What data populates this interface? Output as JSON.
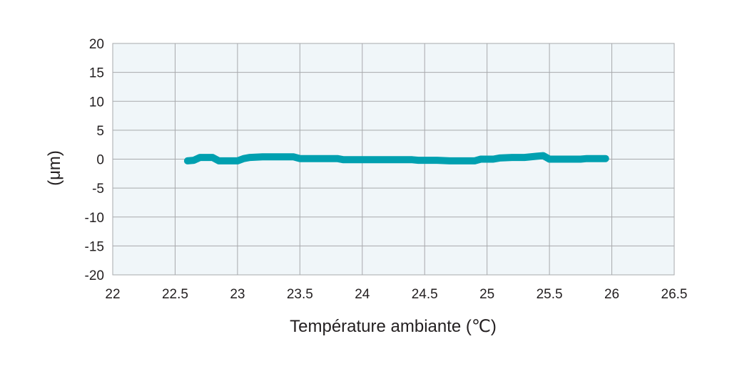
{
  "chart_data": {
    "type": "line",
    "title": "",
    "xlabel": "Température ambiante (℃)",
    "ylabel": "(μm)",
    "xlim": [
      22,
      26.5
    ],
    "ylim": [
      -20,
      20
    ],
    "x_ticks": [
      "22",
      "22.5",
      "23",
      "23.5",
      "24",
      "24.5",
      "25",
      "25.5",
      "26",
      "26.5"
    ],
    "y_ticks": [
      "20",
      "15",
      "10",
      "5",
      "0",
      "-5",
      "-10",
      "-15",
      "-20"
    ],
    "grid": true,
    "plot_background": "#f0f6f9",
    "grid_color": "#a7a9ac",
    "line_color": "#00a0b0",
    "series": [
      {
        "x": [
          22.6,
          22.65,
          22.7,
          22.75,
          22.8,
          22.85,
          22.9,
          22.95,
          23.0,
          23.05,
          23.1,
          23.2,
          23.3,
          23.4,
          23.45,
          23.5,
          23.6,
          23.7,
          23.8,
          23.85,
          23.9,
          24.0,
          24.1,
          24.2,
          24.3,
          24.4,
          24.45,
          24.5,
          24.6,
          24.7,
          24.8,
          24.9,
          24.95,
          25.0,
          25.05,
          25.1,
          25.2,
          25.3,
          25.4,
          25.45,
          25.5,
          25.6,
          25.7,
          25.75,
          25.8,
          25.9,
          25.95
        ],
        "y": [
          -0.3,
          -0.2,
          0.3,
          0.3,
          0.3,
          -0.3,
          -0.3,
          -0.3,
          -0.3,
          0.1,
          0.3,
          0.4,
          0.4,
          0.4,
          0.4,
          0.1,
          0.1,
          0.1,
          0.1,
          -0.1,
          -0.1,
          -0.1,
          -0.1,
          -0.1,
          -0.1,
          -0.1,
          -0.2,
          -0.2,
          -0.2,
          -0.3,
          -0.3,
          -0.3,
          0.0,
          0.0,
          0.0,
          0.2,
          0.3,
          0.3,
          0.5,
          0.6,
          0.0,
          0.0,
          0.0,
          0.0,
          0.1,
          0.1,
          0.1
        ]
      }
    ]
  }
}
